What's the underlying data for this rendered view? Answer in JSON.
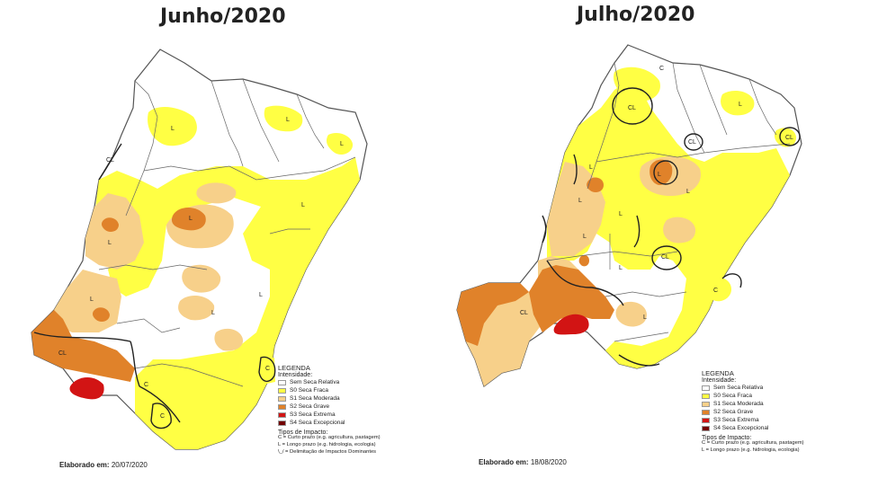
{
  "maps": [
    {
      "title": "Junho/2020",
      "date_label": "Elaborado em:",
      "date_value": "20/07/2020",
      "region_labels": [
        "L",
        "L",
        "L",
        "CL",
        "L",
        "L",
        "L",
        "L",
        "L",
        "CL",
        "C",
        "C",
        "C",
        "L"
      ]
    },
    {
      "title": "Julho/2020",
      "date_label": "Elaborado em:",
      "date_value": "18/08/2020",
      "region_labels": [
        "C",
        "CL",
        "L",
        "CL",
        "CL",
        "L",
        "L",
        "L",
        "L",
        "L",
        "CL",
        "L",
        "L",
        "L",
        "CL",
        "C"
      ]
    }
  ],
  "legend": {
    "title": "LEGENDA",
    "subtitle": "Intensidade:",
    "items": [
      {
        "label": "Sem Seca Relativa",
        "color": "#ffffff"
      },
      {
        "label": "S0 Seca Fraca",
        "color": "#ffff44"
      },
      {
        "label": "S1 Seca Moderada",
        "color": "#f7d08a"
      },
      {
        "label": "S2 Seca Grave",
        "color": "#e0822a"
      },
      {
        "label": "S3 Seca Extrema",
        "color": "#d21414"
      },
      {
        "label": "S4 Seca Excepcional",
        "color": "#720000"
      }
    ],
    "impact_title": "Tipos de Impacto:",
    "impacts": [
      "C = Curto prazo (e.g. agricultura, pastagem)",
      "L = Longo prazo (e.g. hidrologia, ecologia)",
      "\\_/ = Delimitação de Impactos Dominantes"
    ]
  },
  "colors": {
    "s0": "#ffff44",
    "s1": "#f7d08a",
    "s2": "#e0822a",
    "s3": "#d21414",
    "border": "#555555"
  }
}
